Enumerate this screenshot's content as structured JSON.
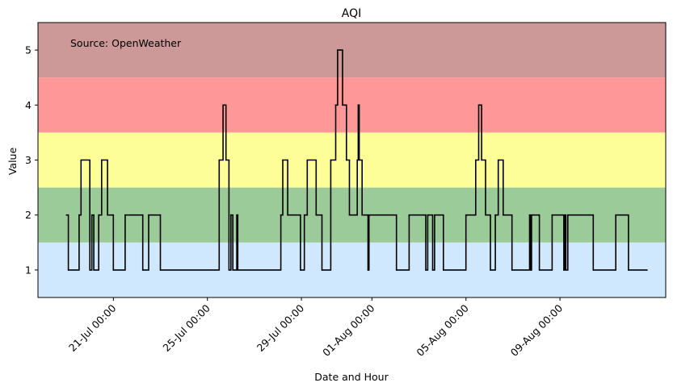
{
  "chart_data": {
    "type": "line",
    "title": "AQI",
    "xlabel": "Date and Hour",
    "ylabel": "Value",
    "annotation": "Source: OpenWeather",
    "ylim": [
      0.5,
      5.5
    ],
    "xlim": [
      "2023-07-17 19:00",
      "2023-08-13 12:00"
    ],
    "yticks": [
      1,
      2,
      3,
      4,
      5
    ],
    "xticks": [
      {
        "value": "2023-07-21 00:00",
        "label": "21-Jul 00:00"
      },
      {
        "value": "2023-07-25 00:00",
        "label": "25-Jul 00:00"
      },
      {
        "value": "2023-07-29 00:00",
        "label": "29-Jul 00:00"
      },
      {
        "value": "2023-08-01 00:00",
        "label": "01-Aug 00:00"
      },
      {
        "value": "2023-08-05 00:00",
        "label": "05-Aug 00:00"
      },
      {
        "value": "2023-08-09 00:00",
        "label": "09-Aug 00:00"
      }
    ],
    "bands": [
      {
        "from": 0.5,
        "to": 1.5,
        "color": "#d0e8fe"
      },
      {
        "from": 1.5,
        "to": 2.5,
        "color": "#9acb99"
      },
      {
        "from": 2.5,
        "to": 3.5,
        "color": "#fefe98"
      },
      {
        "from": 3.5,
        "to": 4.5,
        "color": "#fe9898"
      },
      {
        "from": 4.5,
        "to": 5.5,
        "color": "#cc9898"
      }
    ],
    "grid": false,
    "line_color": "#000000",
    "series": [
      {
        "step": "post",
        "points": [
          [
            "2023-07-19 00:00",
            2
          ],
          [
            "2023-07-19 02:00",
            1
          ],
          [
            "2023-07-19 13:00",
            2
          ],
          [
            "2023-07-19 15:00",
            3
          ],
          [
            "2023-07-20 00:00",
            1
          ],
          [
            "2023-07-20 02:00",
            2
          ],
          [
            "2023-07-20 04:00",
            1
          ],
          [
            "2023-07-20 09:00",
            2
          ],
          [
            "2023-07-20 12:00",
            3
          ],
          [
            "2023-07-20 18:00",
            2
          ],
          [
            "2023-07-21 00:00",
            1
          ],
          [
            "2023-07-21 12:00",
            2
          ],
          [
            "2023-07-22 06:00",
            1
          ],
          [
            "2023-07-22 12:00",
            2
          ],
          [
            "2023-07-23 00:00",
            1
          ],
          [
            "2023-07-25 12:00",
            3
          ],
          [
            "2023-07-25 16:00",
            4
          ],
          [
            "2023-07-25 19:00",
            3
          ],
          [
            "2023-07-25 22:00",
            1
          ],
          [
            "2023-07-26 00:00",
            2
          ],
          [
            "2023-07-26 02:00",
            1
          ],
          [
            "2023-07-26 06:00",
            2
          ],
          [
            "2023-07-26 07:00",
            1
          ],
          [
            "2023-07-28 03:00",
            2
          ],
          [
            "2023-07-28 05:00",
            3
          ],
          [
            "2023-07-28 10:00",
            2
          ],
          [
            "2023-07-28 23:00",
            1
          ],
          [
            "2023-07-29 03:00",
            2
          ],
          [
            "2023-07-29 06:00",
            3
          ],
          [
            "2023-07-29 15:00",
            2
          ],
          [
            "2023-07-29 21:00",
            1
          ],
          [
            "2023-07-30 06:00",
            3
          ],
          [
            "2023-07-30 11:00",
            4
          ],
          [
            "2023-07-30 13:00",
            5
          ],
          [
            "2023-07-30 18:00",
            4
          ],
          [
            "2023-07-30 22:00",
            3
          ],
          [
            "2023-07-31 01:00",
            2
          ],
          [
            "2023-07-31 09:00",
            3
          ],
          [
            "2023-07-31 10:00",
            4
          ],
          [
            "2023-07-31 11:00",
            3
          ],
          [
            "2023-07-31 14:00",
            2
          ],
          [
            "2023-07-31 20:00",
            1
          ],
          [
            "2023-07-31 21:00",
            2
          ],
          [
            "2023-08-02 01:00",
            1
          ],
          [
            "2023-08-02 14:00",
            2
          ],
          [
            "2023-08-03 07:00",
            1
          ],
          [
            "2023-08-03 09:00",
            2
          ],
          [
            "2023-08-03 14:00",
            1
          ],
          [
            "2023-08-03 16:00",
            2
          ],
          [
            "2023-08-04 01:00",
            1
          ],
          [
            "2023-08-05 00:00",
            2
          ],
          [
            "2023-08-05 10:00",
            3
          ],
          [
            "2023-08-05 13:00",
            4
          ],
          [
            "2023-08-05 16:00",
            3
          ],
          [
            "2023-08-05 20:00",
            2
          ],
          [
            "2023-08-06 01:00",
            1
          ],
          [
            "2023-08-06 06:00",
            2
          ],
          [
            "2023-08-06 09:00",
            3
          ],
          [
            "2023-08-06 14:00",
            2
          ],
          [
            "2023-08-06 23:00",
            1
          ],
          [
            "2023-08-07 17:00",
            2
          ],
          [
            "2023-08-07 18:00",
            1
          ],
          [
            "2023-08-07 19:00",
            2
          ],
          [
            "2023-08-08 03:00",
            1
          ],
          [
            "2023-08-08 16:00",
            2
          ],
          [
            "2023-08-09 04:00",
            1
          ],
          [
            "2023-08-09 05:00",
            2
          ],
          [
            "2023-08-09 06:00",
            1
          ],
          [
            "2023-08-09 08:00",
            2
          ],
          [
            "2023-08-09 14:00",
            2
          ],
          [
            "2023-08-10 10:00",
            1
          ],
          [
            "2023-08-11 09:00",
            2
          ],
          [
            "2023-08-11 22:00",
            1
          ],
          [
            "2023-08-12 17:00",
            1
          ]
        ]
      }
    ]
  }
}
